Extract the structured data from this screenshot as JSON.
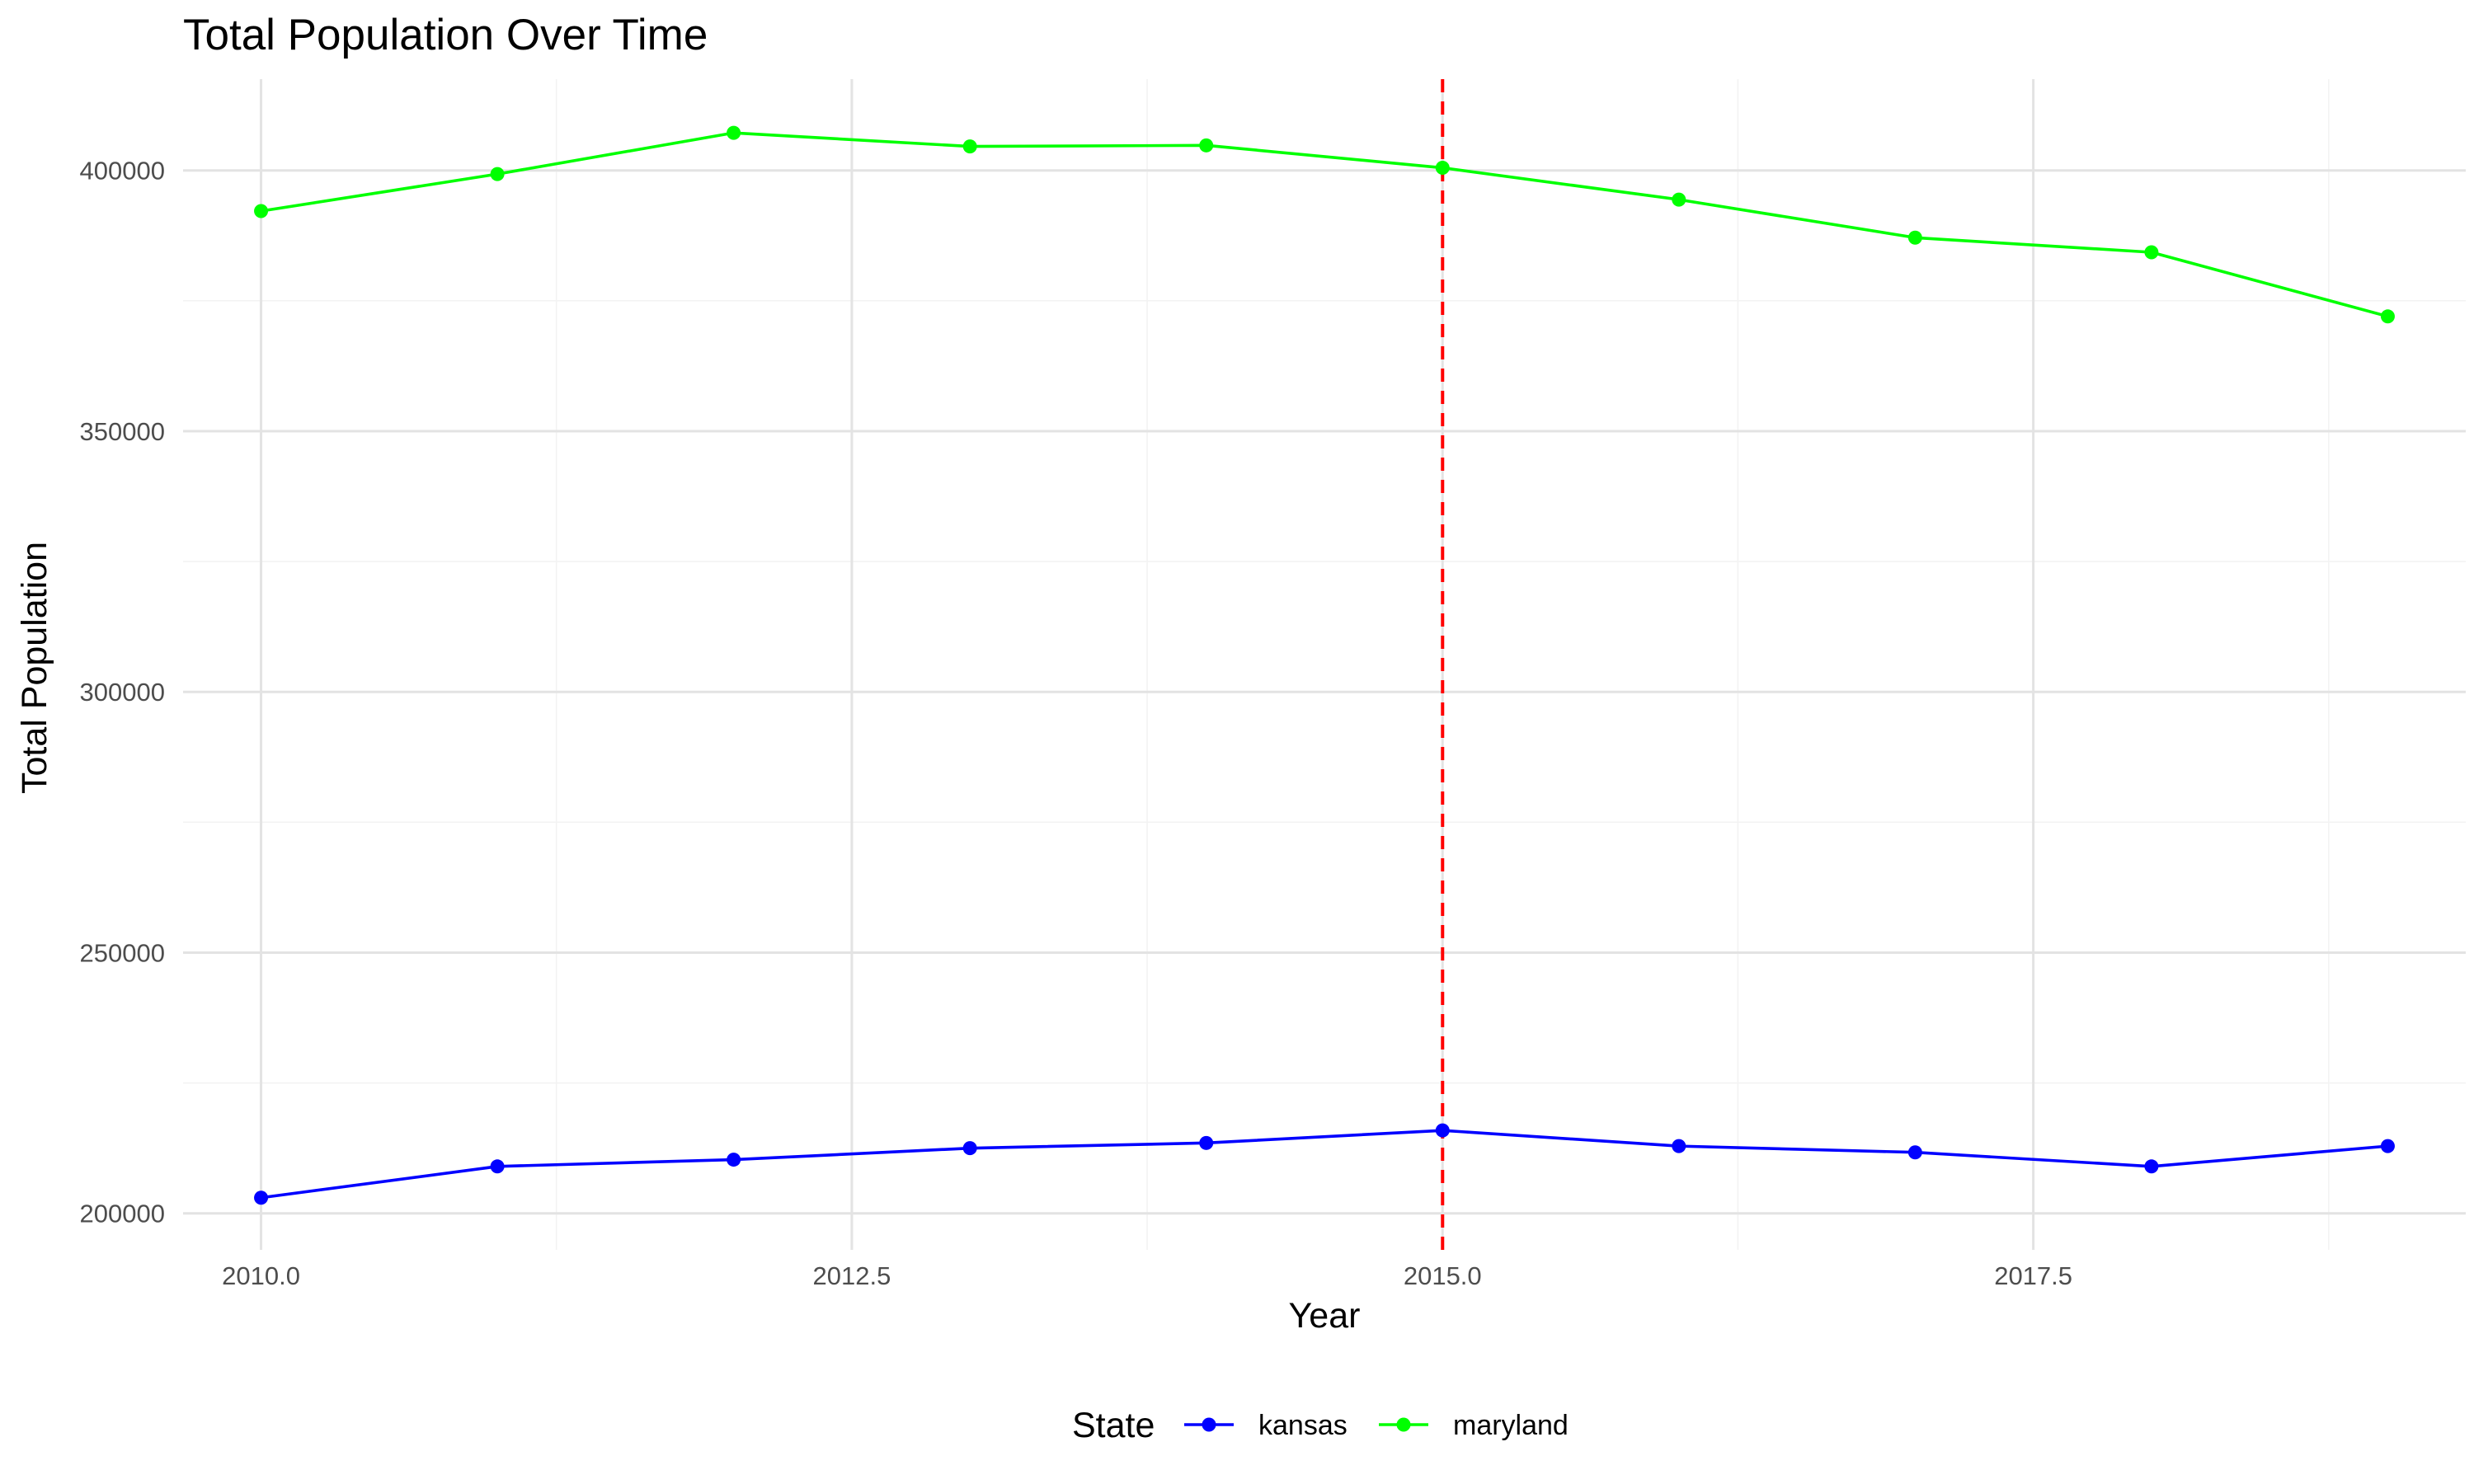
{
  "chart_data": {
    "type": "line",
    "title": "Total Population Over Time",
    "xlabel": "Year",
    "ylabel": "Total Population",
    "xlim": [
      2009.67,
      2019.33
    ],
    "ylim": [
      193000,
      417500
    ],
    "x_ticks": [
      2010.0,
      2012.5,
      2015.0,
      2017.5
    ],
    "x_tick_labels": [
      "2010.0",
      "2012.5",
      "2015.0",
      "2017.5"
    ],
    "x_minor": [
      2011.25,
      2013.75,
      2016.25,
      2018.75
    ],
    "y_ticks": [
      200000,
      250000,
      300000,
      350000,
      400000
    ],
    "y_tick_labels": [
      "200000",
      "250000",
      "300000",
      "350000",
      "400000"
    ],
    "y_minor": [
      225000,
      275000,
      325000,
      375000
    ],
    "x": [
      2010,
      2011,
      2012,
      2013,
      2014,
      2015,
      2016,
      2017,
      2018,
      2019
    ],
    "series": [
      {
        "name": "kansas",
        "color": "#0000ff",
        "values": [
          203000,
          209000,
          210300,
          212500,
          213500,
          215900,
          212900,
          211700,
          209000,
          212900
        ]
      },
      {
        "name": "maryland",
        "color": "#00ff00",
        "values": [
          392200,
          399300,
          407200,
          404600,
          404800,
          400500,
          394400,
          387100,
          384300,
          372000
        ]
      }
    ],
    "vline": {
      "x": 2015,
      "color": "#ff0000",
      "style": "dashed"
    },
    "legend": {
      "title": "State",
      "position": "bottom"
    },
    "grid": true
  }
}
